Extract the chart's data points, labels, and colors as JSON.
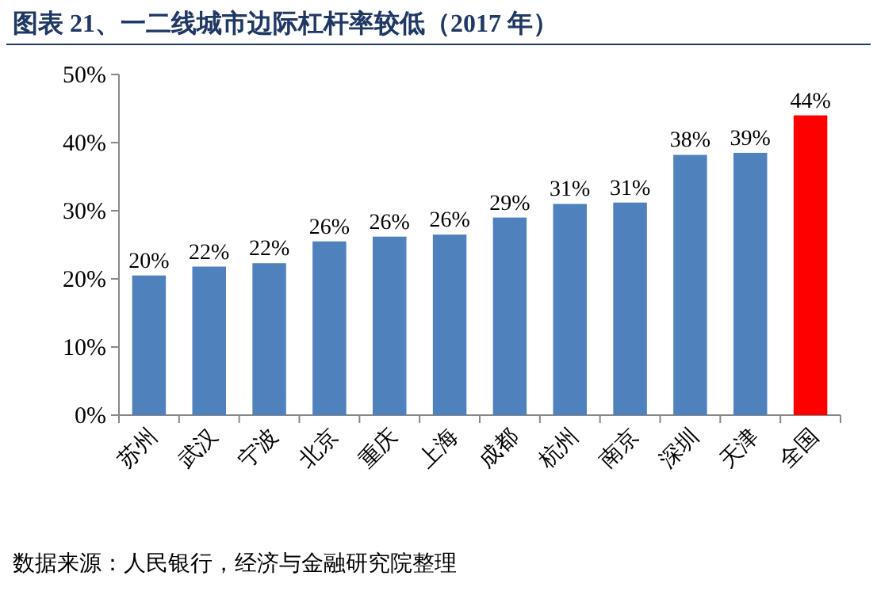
{
  "chart_data": {
    "type": "bar",
    "title": "图表 21、一二线城市边际杠杆率较低（2017 年）",
    "categories": [
      "苏州",
      "武汉",
      "宁波",
      "北京",
      "重庆",
      "上海",
      "成都",
      "杭州",
      "南京",
      "深圳",
      "天津",
      "全国"
    ],
    "values": [
      20.5,
      21.8,
      22.3,
      25.5,
      26.2,
      26.5,
      29,
      31,
      31.2,
      38.2,
      38.5,
      44
    ],
    "value_labels": [
      "20%",
      "22%",
      "22%",
      "26%",
      "26%",
      "26%",
      "29%",
      "31%",
      "31%",
      "38%",
      "39%",
      "44%"
    ],
    "colors": [
      "#4f81bd",
      "#4f81bd",
      "#4f81bd",
      "#4f81bd",
      "#4f81bd",
      "#4f81bd",
      "#4f81bd",
      "#4f81bd",
      "#4f81bd",
      "#4f81bd",
      "#4f81bd",
      "#ff0000"
    ],
    "ylim": [
      0,
      50
    ],
    "yticks": [
      {
        "value": 0,
        "label": "0%"
      },
      {
        "value": 10,
        "label": "10%"
      },
      {
        "value": 20,
        "label": "20%"
      },
      {
        "value": 30,
        "label": "30%"
      },
      {
        "value": 40,
        "label": "40%"
      },
      {
        "value": 50,
        "label": "50%"
      }
    ],
    "grid": false,
    "annotations": [
      "数据来源：人民银行，经济与金融研究院整理"
    ]
  }
}
